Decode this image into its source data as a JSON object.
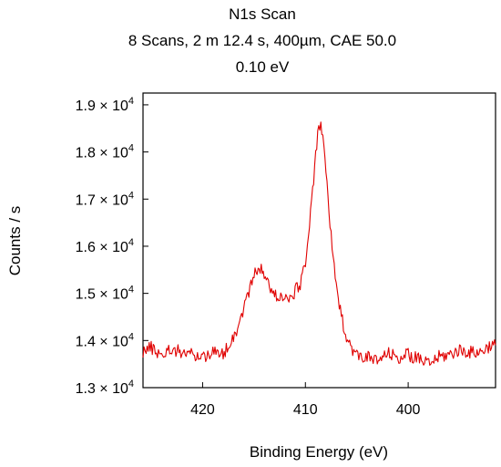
{
  "chart_data": {
    "type": "line",
    "title_lines": [
      "N1s Scan",
      "8 Scans,  2 m 12.4 s,  400µm,  CAE 50.0",
      "0.10 eV"
    ],
    "xlabel": "Binding Energy (eV)",
    "ylabel": "Counts / s",
    "x_reversed": true,
    "xlim": [
      425.8,
      391.5
    ],
    "ylim": [
      13000,
      19250
    ],
    "x_ticks": [
      {
        "value": 420,
        "label": "420"
      },
      {
        "value": 410,
        "label": "410"
      },
      {
        "value": 400,
        "label": "400"
      }
    ],
    "y_ticks": [
      {
        "value": 13000,
        "mantissa": "1.3",
        "sep": " × ",
        "base": "10",
        "exp": "4"
      },
      {
        "value": 14000,
        "mantissa": "1.4",
        "sep": " × ",
        "base": "10",
        "exp": "4"
      },
      {
        "value": 15000,
        "mantissa": "1.5",
        "sep": " × ",
        "base": "10",
        "exp": "4"
      },
      {
        "value": 16000,
        "mantissa": "1.6",
        "sep": " × ",
        "base": "10",
        "exp": "4"
      },
      {
        "value": 17000,
        "mantissa": "1.7",
        "sep": " × ",
        "base": "10",
        "exp": "4"
      },
      {
        "value": 18000,
        "mantissa": "1.8",
        "sep": " × ",
        "base": "10",
        "exp": "4"
      },
      {
        "value": 19000,
        "mantissa": "1.9",
        "sep": " × ",
        "base": "10",
        "exp": "4"
      }
    ],
    "grid": false,
    "series": [
      {
        "color": "#e00000",
        "x": [
          425.8,
          425.0,
          424.0,
          423.0,
          422.0,
          421.0,
          420.0,
          419.0,
          418.5,
          418.0,
          417.5,
          417.0,
          416.5,
          416.0,
          415.5,
          415.0,
          414.6,
          414.2,
          413.8,
          413.4,
          413.0,
          412.5,
          412.0,
          411.5,
          411.0,
          410.5,
          410.0,
          409.6,
          409.3,
          409.0,
          408.8,
          408.6,
          408.4,
          408.1,
          407.8,
          407.4,
          407.0,
          406.5,
          406.0,
          405.5,
          405.0,
          404.0,
          403.0,
          402.0,
          401.0,
          400.0,
          399.0,
          398.0,
          397.0,
          396.0,
          395.0,
          394.0,
          393.0,
          392.0,
          391.5
        ],
        "y": [
          13780,
          13850,
          13700,
          13820,
          13760,
          13700,
          13650,
          13780,
          13680,
          13720,
          13900,
          14100,
          14300,
          14700,
          15050,
          15350,
          15600,
          15450,
          15300,
          15100,
          14950,
          14950,
          14900,
          14850,
          15050,
          15200,
          15700,
          16400,
          17200,
          17900,
          18350,
          18550,
          18450,
          17900,
          17000,
          16000,
          15100,
          14500,
          14100,
          13850,
          13680,
          13650,
          13550,
          13720,
          13640,
          13700,
          13600,
          13500,
          13650,
          13700,
          13800,
          13750,
          13750,
          13900,
          13900
        ]
      }
    ]
  }
}
